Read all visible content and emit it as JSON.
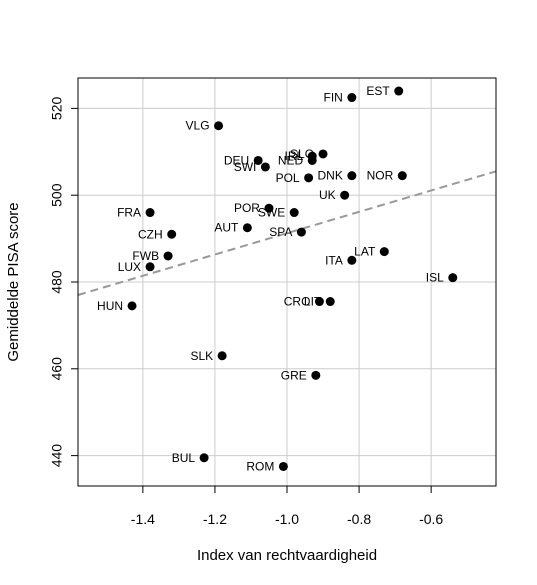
{
  "chart_data": {
    "type": "scatter",
    "title": "",
    "xlabel": "Index van rechtvaardigheid",
    "ylabel": "Gemiddelde PISA score",
    "xlim": [
      -1.58,
      -0.42
    ],
    "ylim": [
      433,
      527
    ],
    "xticks": [
      -1.4,
      -1.2,
      -1.0,
      -0.8,
      -0.6
    ],
    "xtick_labels": [
      "-1.4",
      "-1.2",
      "-1.0",
      "-0.8",
      "-0.6"
    ],
    "yticks": [
      440,
      460,
      480,
      500,
      520
    ],
    "ytick_labels": [
      "440",
      "460",
      "480",
      "500",
      "520"
    ],
    "grid": true,
    "points": [
      {
        "label": "EST",
        "x": -0.69,
        "y": 524
      },
      {
        "label": "FIN",
        "x": -0.82,
        "y": 522.5
      },
      {
        "label": "VLG",
        "x": -1.19,
        "y": 516
      },
      {
        "label": "IRL",
        "x": -0.93,
        "y": 509
      },
      {
        "label": "SLO",
        "x": -0.9,
        "y": 509.5
      },
      {
        "label": "DEU",
        "x": -1.08,
        "y": 508
      },
      {
        "label": "NED",
        "x": -0.93,
        "y": 508
      },
      {
        "label": "SWI",
        "x": -1.06,
        "y": 506.5
      },
      {
        "label": "POL",
        "x": -0.94,
        "y": 504
      },
      {
        "label": "DNK",
        "x": -0.82,
        "y": 504.5
      },
      {
        "label": "NOR",
        "x": -0.68,
        "y": 504.5
      },
      {
        "label": "UK",
        "x": -0.84,
        "y": 500
      },
      {
        "label": "FRA",
        "x": -1.38,
        "y": 496
      },
      {
        "label": "POR",
        "x": -1.05,
        "y": 497
      },
      {
        "label": "SWE",
        "x": -0.98,
        "y": 496
      },
      {
        "label": "AUT",
        "x": -1.11,
        "y": 492.5
      },
      {
        "label": "SPA",
        "x": -0.96,
        "y": 491.5
      },
      {
        "label": "CZH",
        "x": -1.32,
        "y": 491
      },
      {
        "label": "FWB",
        "x": -1.33,
        "y": 486
      },
      {
        "label": "LAT",
        "x": -0.73,
        "y": 487
      },
      {
        "label": "ITA",
        "x": -0.82,
        "y": 485
      },
      {
        "label": "LUX",
        "x": -1.38,
        "y": 483.5
      },
      {
        "label": "ISL",
        "x": -0.54,
        "y": 481
      },
      {
        "label": "HUN",
        "x": -1.43,
        "y": 474.5
      },
      {
        "label": "CRO",
        "x": -0.91,
        "y": 475.5
      },
      {
        "label": "LIT",
        "x": -0.88,
        "y": 475.5
      },
      {
        "label": "SLK",
        "x": -1.18,
        "y": 463
      },
      {
        "label": "GRE",
        "x": -0.92,
        "y": 458.5
      },
      {
        "label": "BUL",
        "x": -1.23,
        "y": 439.5
      },
      {
        "label": "ROM",
        "x": -1.01,
        "y": 437.5
      }
    ],
    "trendline": {
      "style": "dashed",
      "color": "#999999",
      "x": [
        -1.58,
        -0.42
      ],
      "y": [
        477,
        505.5
      ]
    },
    "colors": {
      "points": "#000000",
      "grid": "#cccccc",
      "axis": "#000000"
    }
  }
}
